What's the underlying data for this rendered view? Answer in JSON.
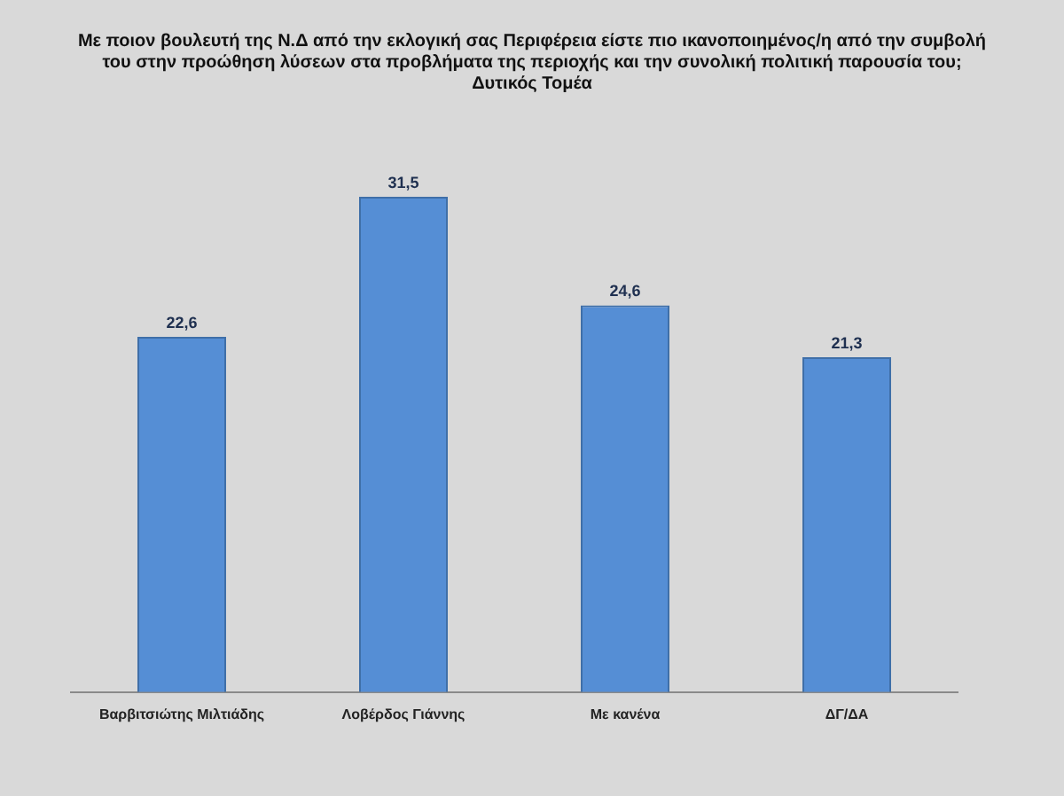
{
  "chart_data": {
    "type": "bar",
    "title": "Με ποιον βουλευτή της Ν.Δ από την εκλογική σας Περιφέρεια είστε πιο ικανοποιημένος/η από την συμβολή του στην προώθηση λύσεων στα προβλήματα της περιοχής και την συνολική πολιτική παρουσία του;",
    "subtitle": "Δυτικός Τομέα",
    "categories": [
      "Βαρβιτσιώτης Μιλτιάδης",
      "Λοβέρδος Γιάννης",
      "Με κανένα",
      "ΔΓ/ΔΑ"
    ],
    "values": [
      22.6,
      31.5,
      24.6,
      21.3
    ],
    "color": "#558ed5",
    "value_labels": [
      "22,6",
      "31,5",
      "24,6",
      "21,3"
    ],
    "grid": false,
    "legend": false
  }
}
